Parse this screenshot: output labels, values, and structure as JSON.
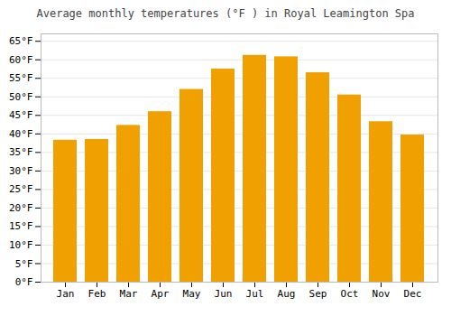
{
  "chart_data": {
    "type": "bar",
    "title": "Average monthly temperatures (°F ) in Royal Leamington Spa",
    "categories": [
      "Jan",
      "Feb",
      "Mar",
      "Apr",
      "May",
      "Jun",
      "Jul",
      "Aug",
      "Sep",
      "Oct",
      "Nov",
      "Dec"
    ],
    "values": [
      38.3,
      38.5,
      42.3,
      46.0,
      52.0,
      57.5,
      61.2,
      60.8,
      56.5,
      50.5,
      43.3,
      39.7
    ],
    "color": "#F0A000",
    "ylim": [
      0,
      67
    ],
    "yticks": [
      {
        "value": 0,
        "label": "0°F"
      },
      {
        "value": 5,
        "label": "5°F"
      },
      {
        "value": 10,
        "label": "10°F"
      },
      {
        "value": 15,
        "label": "15°F"
      },
      {
        "value": 20,
        "label": "20°F"
      },
      {
        "value": 25,
        "label": "25°F"
      },
      {
        "value": 30,
        "label": "30°F"
      },
      {
        "value": 35,
        "label": "35°F"
      },
      {
        "value": 40,
        "label": "40°F"
      },
      {
        "value": 45,
        "label": "45°F"
      },
      {
        "value": 50,
        "label": "50°F"
      },
      {
        "value": 55,
        "label": "55°F"
      },
      {
        "value": 60,
        "label": "60°F"
      },
      {
        "value": 65,
        "label": "65°F"
      }
    ],
    "grid": true
  }
}
